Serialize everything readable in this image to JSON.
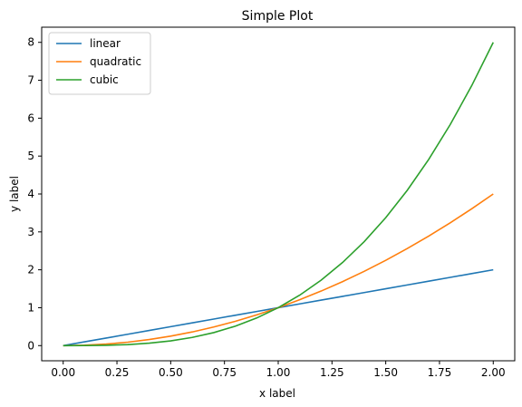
{
  "chart_data": {
    "type": "line",
    "title": "Simple Plot",
    "xlabel": "x label",
    "ylabel": "y label",
    "xlim": [
      -0.1,
      2.1
    ],
    "ylim": [
      -0.4,
      8.4
    ],
    "xticks": [
      0.0,
      0.25,
      0.5,
      0.75,
      1.0,
      1.25,
      1.5,
      1.75,
      2.0
    ],
    "xtick_labels": [
      "0.00",
      "0.25",
      "0.50",
      "0.75",
      "1.00",
      "1.25",
      "1.50",
      "1.75",
      "2.00"
    ],
    "yticks": [
      0,
      1,
      2,
      3,
      4,
      5,
      6,
      7,
      8
    ],
    "ytick_labels": [
      "0",
      "1",
      "2",
      "3",
      "4",
      "5",
      "6",
      "7",
      "8"
    ],
    "legend_position": "top-left",
    "grid": false,
    "x": [
      0.0,
      0.1,
      0.2,
      0.3,
      0.4,
      0.5,
      0.6,
      0.7,
      0.8,
      0.9,
      1.0,
      1.1,
      1.2,
      1.3,
      1.4,
      1.5,
      1.6,
      1.7,
      1.8,
      1.9,
      2.0
    ],
    "series": [
      {
        "name": "linear",
        "color": "#1f77b4",
        "values": [
          0.0,
          0.1,
          0.2,
          0.3,
          0.4,
          0.5,
          0.6,
          0.7,
          0.8,
          0.9,
          1.0,
          1.1,
          1.2,
          1.3,
          1.4,
          1.5,
          1.6,
          1.7,
          1.8,
          1.9,
          2.0
        ]
      },
      {
        "name": "quadratic",
        "color": "#ff7f0e",
        "values": [
          0.0,
          0.01,
          0.04,
          0.09,
          0.16,
          0.25,
          0.36,
          0.49,
          0.64,
          0.81,
          1.0,
          1.21,
          1.44,
          1.69,
          1.96,
          2.25,
          2.56,
          2.89,
          3.24,
          3.61,
          4.0
        ]
      },
      {
        "name": "cubic",
        "color": "#2ca02c",
        "values": [
          0.0,
          0.001,
          0.008,
          0.027,
          0.064,
          0.125,
          0.216,
          0.343,
          0.512,
          0.729,
          1.0,
          1.331,
          1.728,
          2.197,
          2.744,
          3.375,
          4.096,
          4.913,
          5.832,
          6.859,
          8.0
        ]
      }
    ]
  }
}
